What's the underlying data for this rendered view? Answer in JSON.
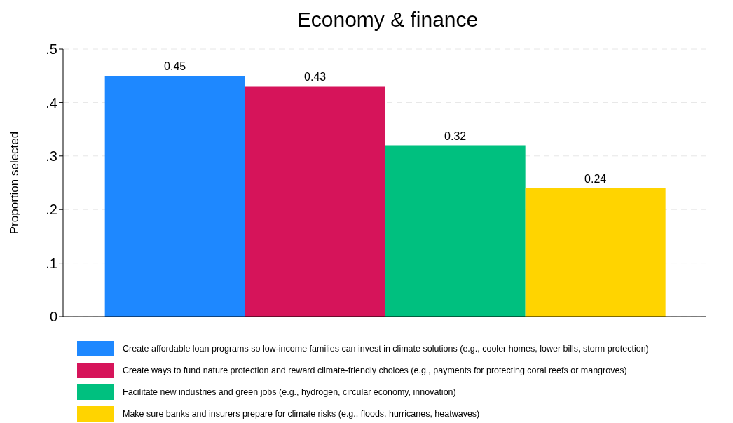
{
  "chart_data": {
    "type": "bar",
    "title": "Economy & finance",
    "ylabel": "Proportion selected",
    "categories": [
      null
    ],
    "series": [
      {
        "name": "Create affordable loan programs so low-income families can invest in climate solutions (e.g., cooler homes, lower bills, storm protection)",
        "color": "#1e88ff",
        "values": [
          0.45
        ]
      },
      {
        "name": "Create ways to fund nature protection and reward climate-friendly choices (e.g., payments for protecting coral reefs or mangroves)",
        "color": "#d6145a",
        "values": [
          0.43
        ]
      },
      {
        "name": "Facilitate new industries and green jobs (e.g., hydrogen, circular economy, innovation)",
        "color": "#00c07f",
        "values": [
          0.32
        ]
      },
      {
        "name": "Make sure banks and insurers prepare for climate risks (e.g., floods, hurricanes, heatwaves)",
        "color": "#ffd400",
        "values": [
          0.24
        ]
      }
    ],
    "ylim": [
      0,
      0.5
    ],
    "yticks": [
      {
        "value": 0,
        "label": "0"
      },
      {
        "value": 0.1,
        "label": ".1"
      },
      {
        "value": 0.2,
        "label": ".2"
      },
      {
        "value": 0.3,
        "label": ".3"
      },
      {
        "value": 0.4,
        "label": ".4"
      },
      {
        "value": 0.5,
        "label": ".5"
      }
    ],
    "grid": "y",
    "legend": "bottom",
    "tick_labels": "y",
    "data_labels": true
  }
}
